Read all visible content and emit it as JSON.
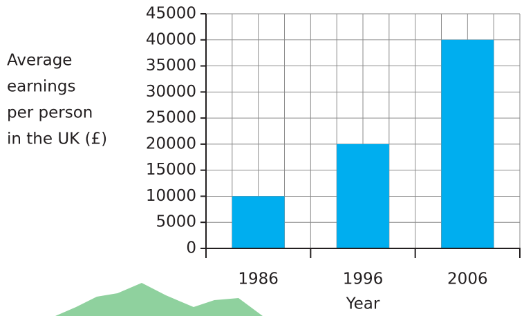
{
  "chart_data": {
    "type": "bar",
    "ylabel": [
      "Average",
      "earnings",
      "per person",
      "in the UK (£)"
    ],
    "xlabel": "Year",
    "categories": [
      "1986",
      "1996",
      "2006"
    ],
    "values": [
      10000,
      20000,
      40000
    ],
    "color": "#00aeef",
    "ylim": [
      0,
      45000
    ],
    "yticks": [
      0,
      5000,
      10000,
      15000,
      20000,
      25000,
      30000,
      35000,
      40000,
      45000
    ],
    "grid": true
  }
}
